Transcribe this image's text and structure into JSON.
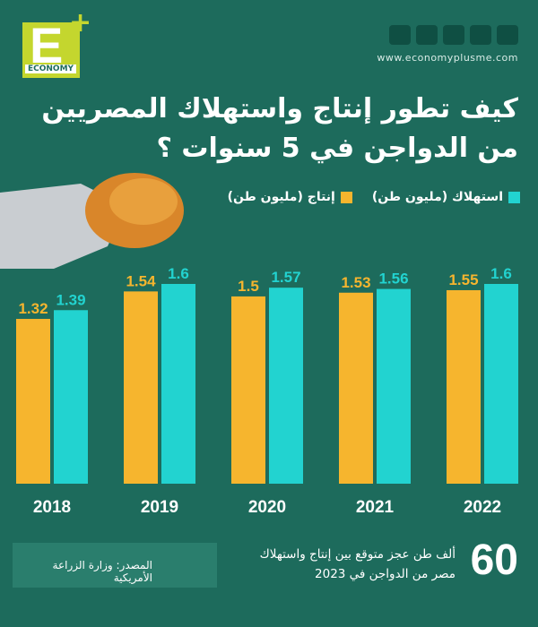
{
  "header": {
    "logo_letter": "E",
    "logo_plus": "+",
    "logo_word": "ECONOMY",
    "website": "www.economyplusme.com"
  },
  "chart_data": {
    "type": "bar",
    "title": [
      "كيف تطور إنتاج واستهلاك المصريين",
      "من الدواجن في 5 سنوات ؟"
    ],
    "categories": [
      "2018",
      "2019",
      "2020",
      "2021",
      "2022"
    ],
    "series": [
      {
        "name": "إنتاج (مليون طن)",
        "color": "#f6b52e",
        "values": [
          1.32,
          1.54,
          1.5,
          1.53,
          1.55
        ]
      },
      {
        "name": "استهلاك (مليون طن)",
        "color": "#22d3d0",
        "values": [
          1.39,
          1.6,
          1.57,
          1.56,
          1.6
        ]
      }
    ]
  },
  "footer": {
    "source": "المصدر: وزارة الزراعة الأمريكية",
    "number": "60",
    "note": [
      "ألف طن عجز متوقع بين إنتاج واستهلاك",
      "مصر من الدواجن في 2023"
    ]
  }
}
